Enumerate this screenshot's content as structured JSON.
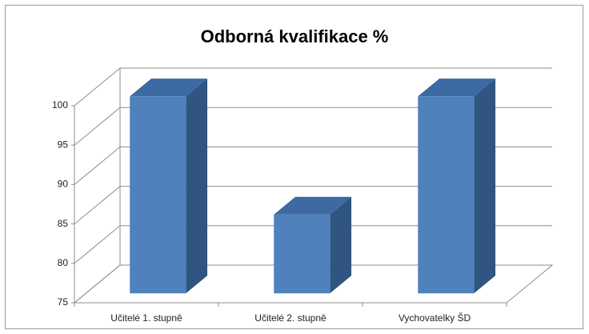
{
  "chart_data": {
    "type": "bar3d",
    "title": "Odborná kvalifikace %",
    "categories": [
      "Učitelé 1. stupně",
      "Učitelé 2. stupně",
      "Vychovatelky ŠD"
    ],
    "values": [
      100,
      85,
      100
    ],
    "color": "#4f81bd",
    "ylim": [
      75,
      100
    ],
    "yticks": [
      75,
      80,
      85,
      90,
      95,
      100
    ],
    "grid": true
  }
}
